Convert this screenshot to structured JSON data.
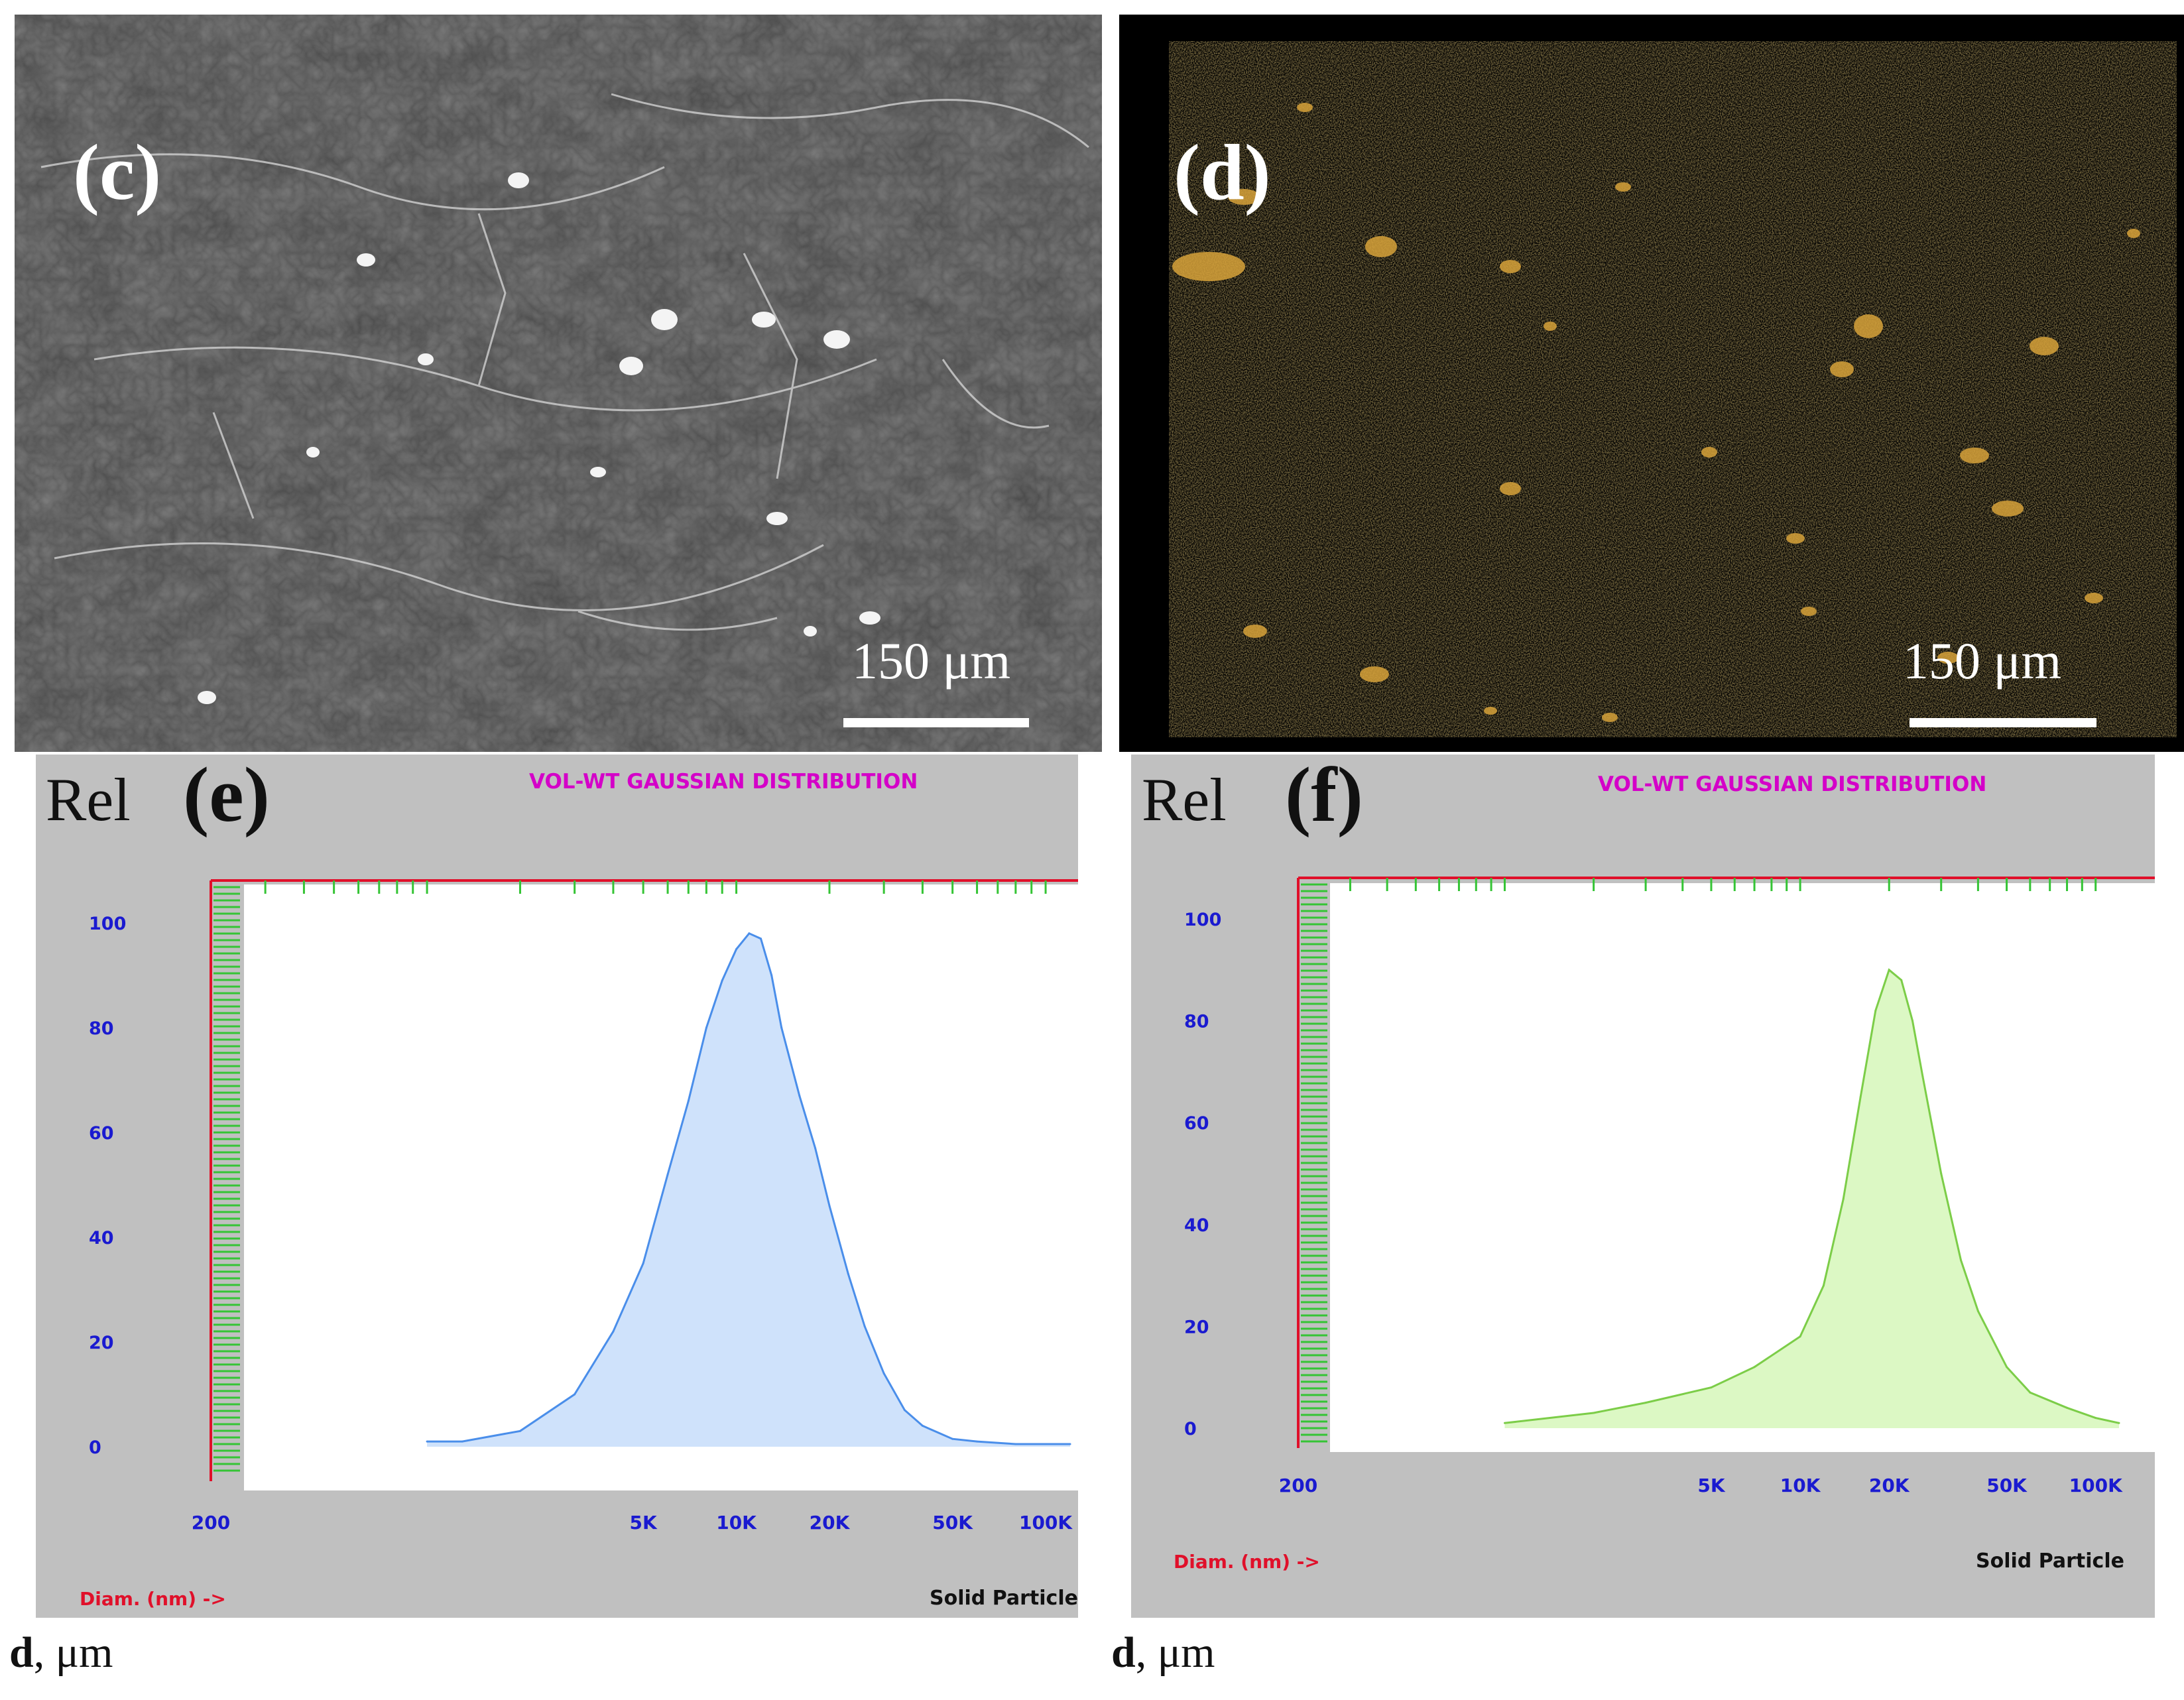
{
  "panels": {
    "c": {
      "letter": "(c)",
      "scale_label": "150 μm"
    },
    "d": {
      "letter": "(d)",
      "scale_label": "150 μm"
    }
  },
  "charts": [
    {
      "letter": "(e)",
      "rel_label": "Rel",
      "title": "VOL-WT GAUSSIAN DISTRIBUTION",
      "diam_label": "Diam. (nm) ->",
      "solid_label": "Solid Particle",
      "bottom_symbol": "d",
      "bottom_unit": ", μm",
      "fill_color": "#cfe2fb",
      "line_color": "#4a8eea"
    },
    {
      "letter": "(f)",
      "rel_label": "Rel",
      "title": "VOL-WT GAUSSIAN DISTRIBUTION",
      "diam_label": "Diam. (nm) ->",
      "solid_label": "Solid Particle",
      "bottom_symbol": "d",
      "bottom_unit": ", μm",
      "fill_color": "#dcf8c4",
      "line_color": "#7ccd48"
    }
  ],
  "chart_data": [
    {
      "type": "area",
      "scale": "log",
      "xlim": [
        200,
        120000
      ],
      "ylim": [
        0,
        100
      ],
      "yticks": [
        0,
        20,
        40,
        60,
        80,
        100
      ],
      "xticks": [
        200,
        5000,
        10000,
        20000,
        50000,
        100000
      ],
      "xtick_labels": [
        "200",
        "5K",
        "10K",
        "20K",
        "50K",
        "100K"
      ],
      "x": [
        1000,
        1300,
        2000,
        3000,
        4000,
        5000,
        6000,
        7000,
        8000,
        9000,
        10000,
        11000,
        12000,
        13000,
        14000,
        16000,
        18000,
        20000,
        23000,
        26000,
        30000,
        35000,
        40000,
        50000,
        60000,
        80000,
        100000,
        120000
      ],
      "y": [
        1,
        1,
        3,
        10,
        22,
        35,
        52,
        66,
        80,
        89,
        95,
        98,
        97,
        90,
        80,
        67,
        57,
        46,
        33,
        23,
        14,
        7,
        4,
        1.5,
        1,
        0.5,
        0.5,
        0.5
      ]
    },
    {
      "type": "area",
      "scale": "log",
      "xlim": [
        200,
        120000
      ],
      "ylim": [
        0,
        100
      ],
      "yticks": [
        0,
        20,
        40,
        60,
        80,
        100
      ],
      "xticks": [
        200,
        5000,
        10000,
        20000,
        50000,
        100000
      ],
      "xtick_labels": [
        "200",
        "5K",
        "10K",
        "20K",
        "50K",
        "100K"
      ],
      "x": [
        1000,
        2000,
        3000,
        5000,
        7000,
        10000,
        12000,
        14000,
        16000,
        18000,
        20000,
        22000,
        24000,
        26000,
        30000,
        35000,
        40000,
        50000,
        60000,
        80000,
        100000,
        120000
      ],
      "y": [
        1,
        3,
        5,
        8,
        12,
        18,
        28,
        45,
        65,
        82,
        90,
        88,
        80,
        69,
        50,
        33,
        23,
        12,
        7,
        4,
        2,
        1
      ]
    }
  ]
}
